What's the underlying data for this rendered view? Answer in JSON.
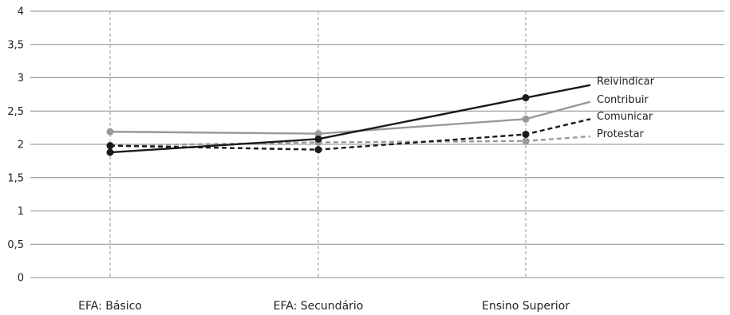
{
  "chart_data": {
    "type": "line",
    "categories": [
      "EFA: Básico",
      "EFA: Secundário",
      "Ensino Superior"
    ],
    "y_ticks": [
      "0",
      "0,5",
      "1",
      "1,5",
      "2",
      "2,5",
      "3",
      "3,5",
      "4"
    ],
    "ylim": [
      0,
      4
    ],
    "grid": "horizontal solid lines; vertical dashed lines at categories",
    "legend": "inline labels at right end of each line",
    "series": [
      {
        "name": "Reivindicar",
        "values": [
          1.88,
          2.08,
          2.7
        ],
        "end_value": 2.89,
        "color": "#1a1a1a",
        "style": "solid"
      },
      {
        "name": "Contribuir",
        "values": [
          2.19,
          2.16,
          2.38
        ],
        "end_value": 2.64,
        "color": "#999999",
        "style": "solid"
      },
      {
        "name": "Comunicar",
        "values": [
          1.98,
          1.92,
          2.15
        ],
        "end_value": 2.38,
        "color": "#1a1a1a",
        "style": "dashed"
      },
      {
        "name": "Protestar",
        "values": [
          1.98,
          2.03,
          2.05
        ],
        "end_value": 2.12,
        "color": "#999999",
        "style": "dashed"
      }
    ]
  }
}
